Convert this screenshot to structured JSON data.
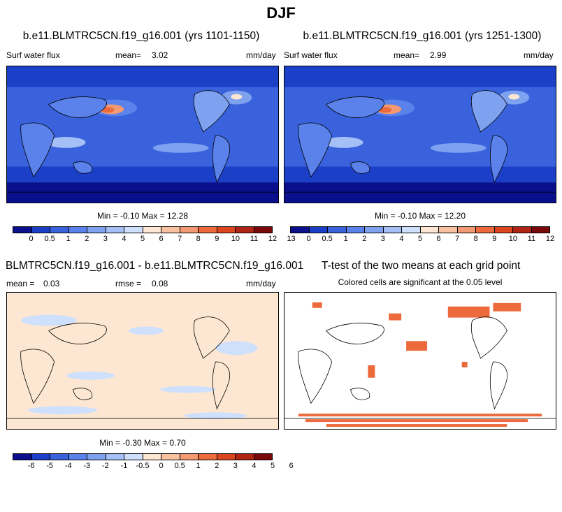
{
  "figure": {
    "title": "DJF"
  },
  "panels": {
    "top_left": {
      "title": "b.e11.BLMTRC5CN.f19_g16.001 (yrs 1101-1150)",
      "left_label": "Surf water flux",
      "mean_label": "mean=",
      "mean_value": "3.02",
      "units": "mm/day",
      "minmax_label": "Min =  -0.10 Max =  12.28"
    },
    "top_right": {
      "title": "b.e11.BLMTRC5CN.f19_g16.001 (yrs 1251-1300)",
      "left_label": "Surf water flux",
      "mean_label": "mean=",
      "mean_value": "2.99",
      "units": "mm/day",
      "minmax_label": "Min =  -0.10 Max =  12.20"
    },
    "bottom_left": {
      "title": "BLMTRC5CN.f19_g16.001 - b.e11.BLMTRC5CN.f19_g16.001",
      "mean_label": "mean =",
      "mean_value": "0.03",
      "rmse_label": "rmse =",
      "rmse_value": "0.08",
      "units": "mm/day",
      "minmax_label": "Min =  -0.30 Max =  0.70"
    },
    "bottom_right": {
      "title": "T-test of the two means at each grid point",
      "subtitle": "Colored cells are significant at the 0.05 level"
    }
  },
  "colorbars": {
    "abs_colors": [
      "#0a0f8c",
      "#1c3fc8",
      "#3a62dc",
      "#5a82ea",
      "#7ea2f0",
      "#a4c0f6",
      "#cfe0fc",
      "#fde7d2",
      "#f8c2a0",
      "#f39a72",
      "#ec6a3c",
      "#dc4420",
      "#b02414",
      "#7a0a0a"
    ],
    "abs_labels": [
      "0",
      "0.5",
      "1",
      "2",
      "3",
      "4",
      "5",
      "6",
      "7",
      "8",
      "9",
      "10",
      "11",
      "12",
      "13"
    ],
    "diff_colors": [
      "#0a0f8c",
      "#1c3fc8",
      "#3a62dc",
      "#5a82ea",
      "#7ea2f0",
      "#a4c0f6",
      "#cfe0fc",
      "#fde7d2",
      "#f8c2a0",
      "#f39a72",
      "#ec6a3c",
      "#dc4420",
      "#b02414",
      "#7a0a0a"
    ],
    "diff_labels": [
      "-6",
      "-5",
      "-4",
      "-3",
      "-2",
      "-1",
      "-0.5",
      "0",
      "0.5",
      "1",
      "2",
      "3",
      "4",
      "5",
      "6"
    ]
  }
}
